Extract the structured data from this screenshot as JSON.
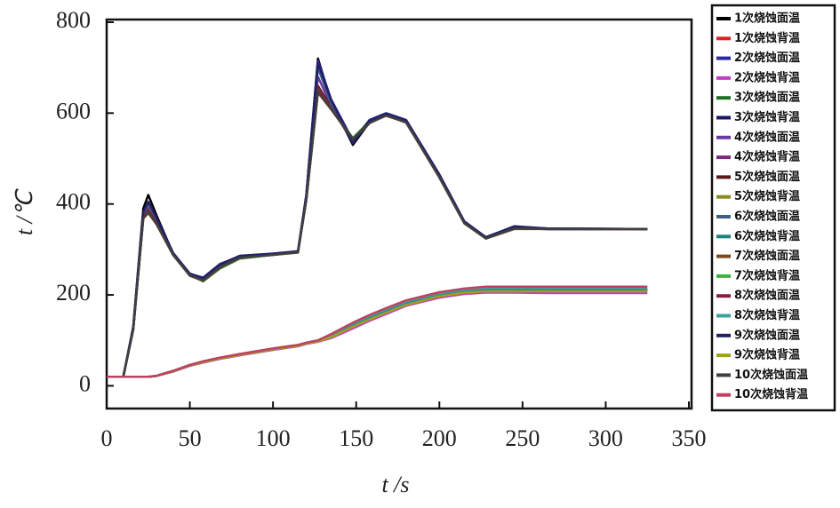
{
  "chart_data": {
    "type": "line",
    "xlabel": "t /s",
    "ylabel": "t /℃",
    "xlim": [
      0,
      350
    ],
    "xticks": [
      0,
      50,
      100,
      150,
      200,
      250,
      300,
      350
    ],
    "ylim": [
      -50,
      800
    ],
    "yticks": [
      0,
      200,
      400,
      600,
      800
    ],
    "x": [
      0,
      10,
      16,
      22,
      25,
      30,
      40,
      50,
      58,
      68,
      80,
      100,
      115,
      120,
      127,
      135,
      148,
      158,
      168,
      180,
      200,
      215,
      228,
      245,
      265,
      325
    ],
    "series": [
      {
        "name": "1次烧蚀面温",
        "color": "#000000",
        "values": [
          20,
          20,
          130,
          390,
          420,
          375,
          290,
          245,
          232,
          262,
          283,
          290,
          295,
          420,
          720,
          625,
          530,
          580,
          598,
          580,
          460,
          360,
          325,
          347,
          345,
          345
        ]
      },
      {
        "name": "1次烧蚀背温",
        "color": "#d62728",
        "values": [
          20,
          20,
          20,
          20,
          20,
          22,
          32,
          45,
          52,
          60,
          68,
          80,
          88,
          93,
          98,
          106,
          128,
          145,
          160,
          178,
          196,
          204,
          207,
          207,
          207,
          207
        ]
      },
      {
        "name": "2次烧蚀面温",
        "color": "#2a2aa0",
        "values": [
          20,
          20,
          128,
          380,
          400,
          368,
          292,
          246,
          238,
          268,
          285,
          290,
          296,
          418,
          715,
          630,
          540,
          585,
          600,
          585,
          465,
          362,
          327,
          350,
          346,
          345
        ]
      },
      {
        "name": "2次烧蚀背温",
        "color": "#c040c0",
        "values": [
          20,
          20,
          20,
          20,
          20,
          22,
          31,
          44,
          51,
          59,
          67,
          79,
          87,
          92,
          97,
          105,
          126,
          143,
          158,
          176,
          194,
          202,
          205,
          205,
          204,
          204
        ]
      },
      {
        "name": "3次烧蚀面温",
        "color": "#1f6f1f",
        "values": [
          20,
          20,
          125,
          370,
          390,
          360,
          288,
          244,
          230,
          258,
          280,
          288,
          294,
          410,
          650,
          610,
          545,
          582,
          596,
          582,
          462,
          358,
          324,
          346,
          345,
          345
        ]
      },
      {
        "name": "3次烧蚀背温",
        "color": "#1a1a60",
        "values": [
          20,
          20,
          20,
          20,
          20,
          22,
          32,
          46,
          53,
          61,
          69,
          81,
          89,
          94,
          99,
          110,
          134,
          150,
          165,
          182,
          200,
          208,
          212,
          212,
          212,
          212
        ]
      },
      {
        "name": "4次烧蚀面温",
        "color": "#6a3aa0",
        "values": [
          20,
          20,
          126,
          375,
          395,
          362,
          290,
          245,
          234,
          264,
          284,
          289,
          295,
          415,
          680,
          615,
          535,
          580,
          597,
          581,
          461,
          360,
          326,
          348,
          345,
          345
        ]
      },
      {
        "name": "4次烧蚀背温",
        "color": "#7a2a7a",
        "values": [
          20,
          20,
          20,
          20,
          20,
          22,
          32,
          45,
          52,
          60,
          68,
          80,
          88,
          93,
          98,
          108,
          131,
          147,
          162,
          179,
          197,
          205,
          209,
          209,
          209,
          209
        ]
      },
      {
        "name": "5次烧蚀面温",
        "color": "#5a1a1a",
        "values": [
          20,
          20,
          124,
          372,
          385,
          358,
          289,
          243,
          233,
          262,
          283,
          289,
          294,
          412,
          660,
          612,
          538,
          578,
          595,
          579,
          459,
          359,
          325,
          346,
          345,
          345
        ]
      },
      {
        "name": "5次烧蚀背温",
        "color": "#8a8a20",
        "values": [
          20,
          20,
          20,
          20,
          20,
          22,
          33,
          46,
          53,
          61,
          69,
          81,
          89,
          94,
          99,
          111,
          136,
          152,
          167,
          184,
          202,
          210,
          214,
          214,
          214,
          214
        ]
      },
      {
        "name": "6次烧蚀面温",
        "color": "#406080",
        "values": [
          20,
          20,
          127,
          378,
          398,
          365,
          291,
          246,
          236,
          266,
          285,
          290,
          295,
          416,
          700,
          620,
          536,
          581,
          598,
          583,
          463,
          361,
          326,
          349,
          346,
          345
        ]
      },
      {
        "name": "6次烧蚀背温",
        "color": "#208080",
        "values": [
          20,
          20,
          20,
          20,
          20,
          22,
          32,
          45,
          52,
          60,
          68,
          80,
          88,
          93,
          98,
          109,
          133,
          149,
          164,
          181,
          199,
          207,
          211,
          211,
          211,
          211
        ]
      },
      {
        "name": "7次烧蚀面温",
        "color": "#7a4a20",
        "values": [
          20,
          20,
          123,
          368,
          380,
          355,
          287,
          242,
          231,
          260,
          282,
          288,
          293,
          408,
          645,
          608,
          542,
          579,
          594,
          580,
          458,
          357,
          324,
          345,
          345,
          345
        ]
      },
      {
        "name": "7次烧蚀背温",
        "color": "#40b040",
        "values": [
          20,
          20,
          20,
          20,
          20,
          22,
          33,
          46,
          54,
          62,
          70,
          82,
          90,
          95,
          100,
          113,
          138,
          155,
          170,
          187,
          205,
          213,
          217,
          217,
          217,
          217
        ]
      },
      {
        "name": "8次烧蚀面温",
        "color": "#8a2040",
        "values": [
          20,
          20,
          125,
          371,
          388,
          359,
          289,
          244,
          233,
          263,
          283,
          289,
          294,
          411,
          655,
          611,
          540,
          580,
          596,
          581,
          460,
          359,
          325,
          347,
          345,
          345
        ]
      },
      {
        "name": "8次烧蚀背温",
        "color": "#40a0a0",
        "values": [
          20,
          20,
          20,
          20,
          20,
          22,
          32,
          45,
          53,
          61,
          69,
          81,
          89,
          94,
          99,
          112,
          137,
          153,
          168,
          185,
          203,
          211,
          215,
          215,
          215,
          215
        ]
      },
      {
        "name": "9次烧蚀面温",
        "color": "#20206a",
        "values": [
          20,
          20,
          129,
          382,
          405,
          370,
          292,
          247,
          237,
          267,
          286,
          291,
          296,
          419,
          710,
          628,
          534,
          583,
          599,
          584,
          464,
          361,
          327,
          351,
          346,
          345
        ]
      },
      {
        "name": "9次烧蚀背温",
        "color": "#a0a020",
        "values": [
          20,
          20,
          20,
          20,
          20,
          22,
          32,
          45,
          52,
          60,
          68,
          80,
          88,
          93,
          98,
          107,
          130,
          146,
          161,
          178,
          197,
          205,
          208,
          208,
          208,
          208
        ]
      },
      {
        "name": "10次烧蚀面温",
        "color": "#404040",
        "values": [
          20,
          20,
          124,
          369,
          383,
          357,
          288,
          243,
          232,
          261,
          282,
          288,
          294,
          409,
          648,
          609,
          543,
          578,
          595,
          580,
          459,
          358,
          324,
          346,
          345,
          345
        ]
      },
      {
        "name": "10次烧蚀背温",
        "color": "#c04060",
        "values": [
          20,
          20,
          20,
          20,
          20,
          22,
          33,
          46,
          54,
          62,
          70,
          82,
          90,
          95,
          100,
          114,
          139,
          156,
          171,
          188,
          206,
          214,
          218,
          218,
          218,
          218
        ]
      }
    ]
  }
}
